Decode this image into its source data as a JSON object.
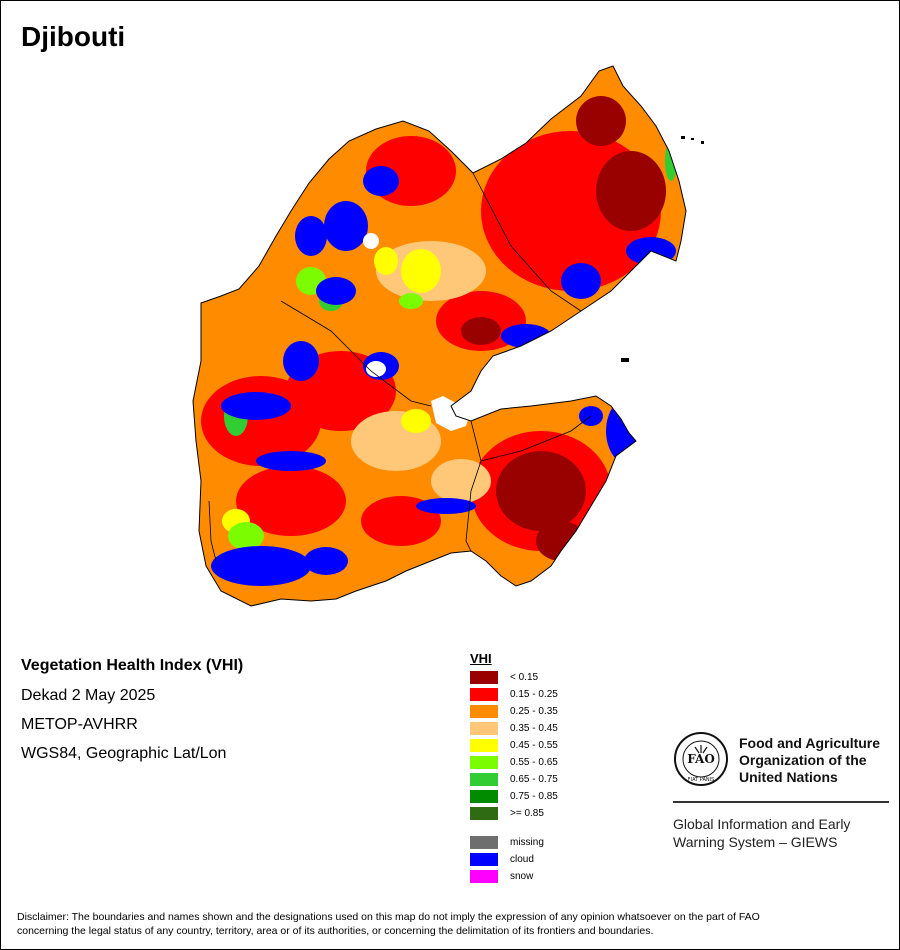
{
  "map": {
    "title": "Djibouti"
  },
  "info": {
    "index_title": "Vegetation Health Index (VHI)",
    "period": "Dekad 2 May 2025",
    "sensor": "METOP-AVHRR",
    "projection": "WGS84, Geographic Lat/Lon"
  },
  "legend": {
    "heading": "VHI",
    "classes": [
      {
        "label": "< 0.15",
        "color": "#990000"
      },
      {
        "label": "0.15 - 0.25",
        "color": "#ff0000"
      },
      {
        "label": "0.25 - 0.35",
        "color": "#ff8c00"
      },
      {
        "label": "0.35 - 0.45",
        "color": "#ffc878"
      },
      {
        "label": "0.45 - 0.55",
        "color": "#ffff00"
      },
      {
        "label": "0.55 - 0.65",
        "color": "#7cfc00"
      },
      {
        "label": "0.65 - 0.75",
        "color": "#32cd32"
      },
      {
        "label": "0.75 - 0.85",
        "color": "#008b00"
      },
      {
        "label": ">= 0.85",
        "color": "#2e6b12"
      }
    ],
    "special": [
      {
        "label": "missing",
        "color": "#6e6e6e"
      },
      {
        "label": "cloud",
        "color": "#0000ff"
      },
      {
        "label": "snow",
        "color": "#ff00ff"
      }
    ]
  },
  "organization": {
    "name_line1": "Food and Agriculture",
    "name_line2": "Organization of the",
    "name_line3": "United Nations",
    "system_line1": "Global Information and Early",
    "system_line2": "Warning System – GIEWS",
    "logo_text": "FIAT PANIS",
    "logo_letters": "FAO"
  },
  "disclaimer": {
    "line1": "Disclaimer: The boundaries and names shown and the designations used on this map do not imply the expression of any opinion whatsoever on the part of FAO",
    "line2": "concerning the legal status of any country, territory, area or of its authorities, or concerning the delimitation of its frontiers and boundaries."
  }
}
